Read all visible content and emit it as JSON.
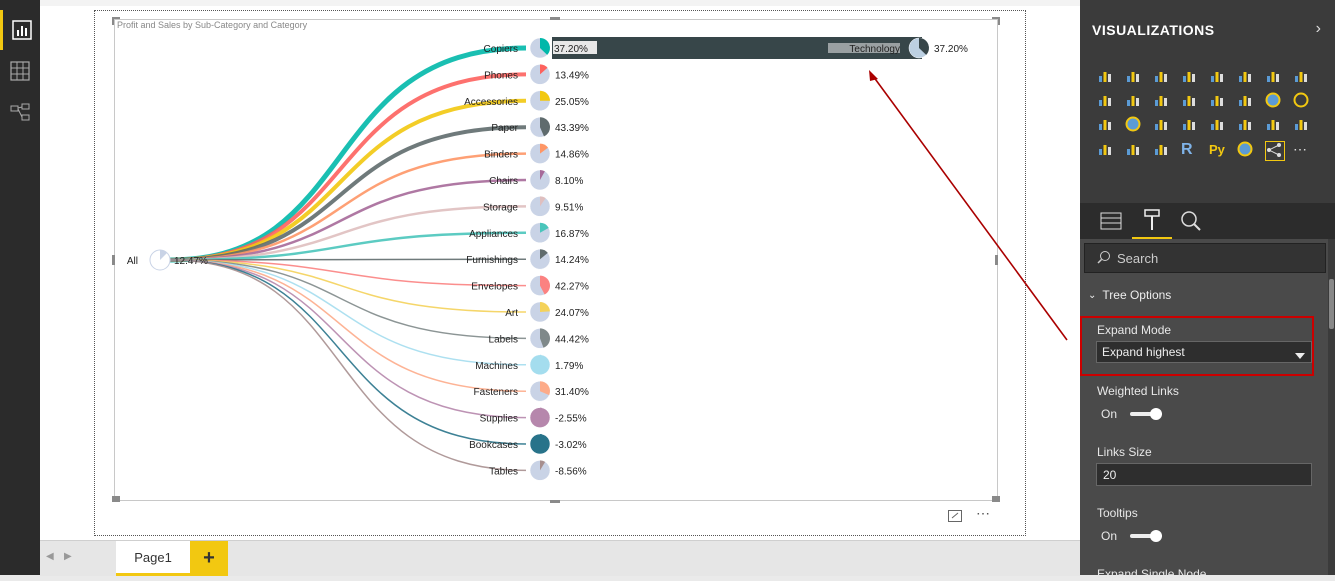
{
  "visual": {
    "title": "Profit and Sales by Sub-Category and Category"
  },
  "chart_data": {
    "type": "tree",
    "root": {
      "label": "All",
      "value": "12.47%"
    },
    "nodes": [
      {
        "label": "Copiers",
        "value": "37.20%",
        "color": "#01b8aa",
        "fraction": 0.372
      },
      {
        "label": "Phones",
        "value": "13.49%",
        "color": "#fd625e",
        "fraction": 0.135
      },
      {
        "label": "Accessories",
        "value": "25.05%",
        "color": "#f2c80f",
        "fraction": 0.25
      },
      {
        "label": "Paper",
        "value": "43.39%",
        "color": "#5f6b6d",
        "fraction": 0.434
      },
      {
        "label": "Binders",
        "value": "14.86%",
        "color": "#fe9666",
        "fraction": 0.149
      },
      {
        "label": "Chairs",
        "value": "8.10%",
        "color": "#a66999",
        "fraction": 0.081
      },
      {
        "label": "Storage",
        "value": "9.51%",
        "color": "#dfbfbf",
        "fraction": 0.095
      },
      {
        "label": "Appliances",
        "value": "16.87%",
        "color": "#4ac5bb",
        "fraction": 0.169
      },
      {
        "label": "Furnishings",
        "value": "14.24%",
        "color": "#5f6b6d",
        "fraction": 0.142
      },
      {
        "label": "Envelopes",
        "value": "42.27%",
        "color": "#fb8281",
        "fraction": 0.423
      },
      {
        "label": "Art",
        "value": "24.07%",
        "color": "#f4d25a",
        "fraction": 0.241
      },
      {
        "label": "Labels",
        "value": "44.42%",
        "color": "#7f898a",
        "fraction": 0.444
      },
      {
        "label": "Machines",
        "value": "1.79%",
        "color": "#a4ddee",
        "fraction": 0.018
      },
      {
        "label": "Fasteners",
        "value": "31.40%",
        "color": "#fdab89",
        "fraction": 0.314
      },
      {
        "label": "Supplies",
        "value": "-2.55%",
        "color": "#b687ac",
        "fraction": 0.026
      },
      {
        "label": "Bookcases",
        "value": "-3.02%",
        "color": "#28738a",
        "fraction": 0.03
      },
      {
        "label": "Tables",
        "value": "-8.56%",
        "color": "#a78f8f",
        "fraction": 0.086
      }
    ],
    "expanded": {
      "label": "Technology",
      "value": "37.20%",
      "fraction": 0.372
    }
  },
  "pages": {
    "tab": "Page1",
    "add": "+"
  },
  "panel": {
    "header": "VISUALIZATIONS",
    "search_placeholder": "Search",
    "section": "Tree Options",
    "expand_mode_label": "Expand Mode",
    "expand_mode_value": "Expand highest",
    "weighted_links_label": "Weighted Links",
    "weighted_links_state": "On",
    "links_size_label": "Links Size",
    "links_size_value": "20",
    "tooltips_label": "Tooltips",
    "tooltips_state": "On",
    "expand_single_label": "Expand Single Node"
  },
  "colors": {
    "accent": "#f2c811",
    "highlight_box": "#cc0000",
    "arrow": "#aa0000"
  }
}
